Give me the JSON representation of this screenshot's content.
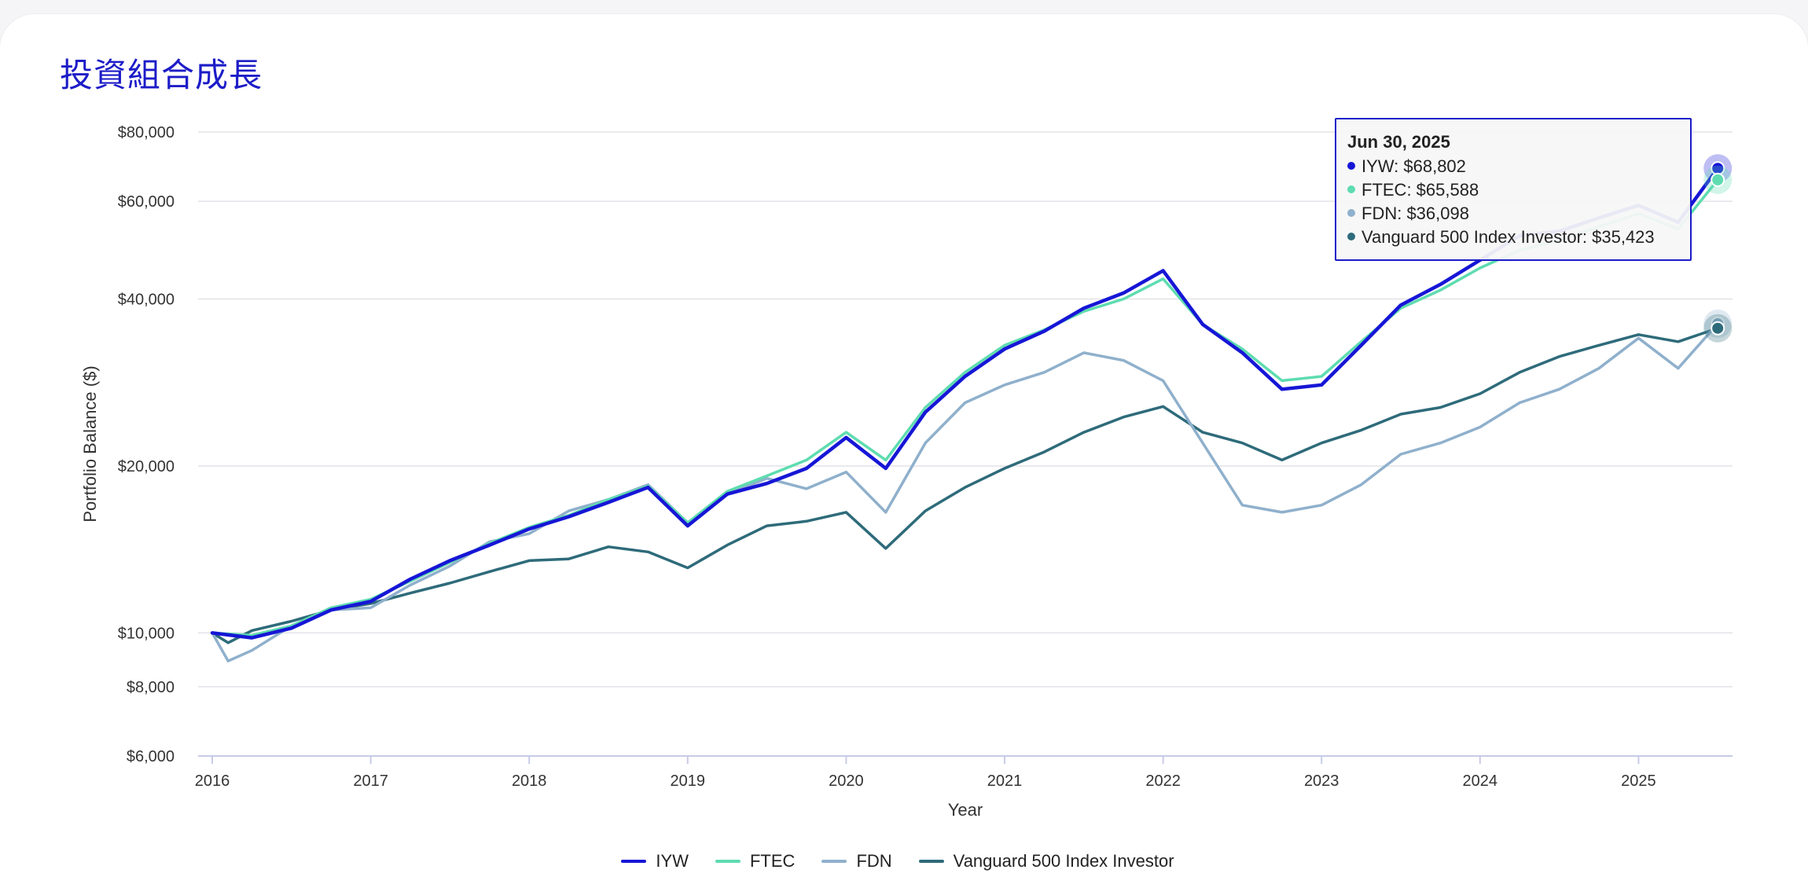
{
  "header": {
    "title": "投資組合成長"
  },
  "colors": {
    "IYW": "#1616d6",
    "FTEC": "#5edcb0",
    "FDN": "#8fb0cc",
    "VFINX": "#2e6b7a"
  },
  "tooltip": {
    "date": "Jun 30, 2025",
    "rows": [
      {
        "label": "IYW: $68,802",
        "color": "#1616d6"
      },
      {
        "label": "FTEC: $65,588",
        "color": "#5edcb0"
      },
      {
        "label": "FDN: $36,098",
        "color": "#8fb0cc"
      },
      {
        "label": "Vanguard 500 Index Investor: $35,423",
        "color": "#2e6b7a"
      }
    ]
  },
  "chart_data": {
    "type": "line",
    "title": "投資組合成長",
    "xlabel": "Year",
    "ylabel": "Portfolio Balance ($)",
    "yscale": "log",
    "ylim": [
      6000,
      80000
    ],
    "xlim": [
      2016,
      2025.6
    ],
    "x_ticks": [
      2016,
      2017,
      2018,
      2019,
      2020,
      2021,
      2022,
      2023,
      2024,
      2025
    ],
    "y_ticks": [
      6000,
      8000,
      10000,
      20000,
      40000,
      60000,
      80000
    ],
    "y_tick_labels": [
      "$6,000",
      "$8,000",
      "$10,000",
      "$20,000",
      "$40,000",
      "$60,000",
      "$80,000"
    ],
    "grid": true,
    "legend_position": "bottom-center",
    "series": [
      {
        "key": "IYW",
        "name": "IYW",
        "color": "#1616d6",
        "points": [
          [
            2016.0,
            10000
          ],
          [
            2016.25,
            9800
          ],
          [
            2016.5,
            10200
          ],
          [
            2016.75,
            11000
          ],
          [
            2017.0,
            11400
          ],
          [
            2017.25,
            12500
          ],
          [
            2017.5,
            13500
          ],
          [
            2017.75,
            14400
          ],
          [
            2018.0,
            15400
          ],
          [
            2018.25,
            16200
          ],
          [
            2018.5,
            17200
          ],
          [
            2018.75,
            18300
          ],
          [
            2019.0,
            15600
          ],
          [
            2019.25,
            17800
          ],
          [
            2019.5,
            18600
          ],
          [
            2019.75,
            19800
          ],
          [
            2020.0,
            22500
          ],
          [
            2020.25,
            19800
          ],
          [
            2020.5,
            25000
          ],
          [
            2020.75,
            29000
          ],
          [
            2021.0,
            32500
          ],
          [
            2021.25,
            35000
          ],
          [
            2021.5,
            38500
          ],
          [
            2021.75,
            41000
          ],
          [
            2022.0,
            45000
          ],
          [
            2022.25,
            36000
          ],
          [
            2022.5,
            32000
          ],
          [
            2022.75,
            27500
          ],
          [
            2023.0,
            28000
          ],
          [
            2023.25,
            33000
          ],
          [
            2023.5,
            39000
          ],
          [
            2023.75,
            42500
          ],
          [
            2024.0,
            47000
          ],
          [
            2024.25,
            52000
          ],
          [
            2024.5,
            53000
          ],
          [
            2024.75,
            56000
          ],
          [
            2025.0,
            59000
          ],
          [
            2025.25,
            55000
          ],
          [
            2025.5,
            68802
          ]
        ]
      },
      {
        "key": "FTEC",
        "name": "FTEC",
        "color": "#5edcb0",
        "points": [
          [
            2016.0,
            10000
          ],
          [
            2016.25,
            9900
          ],
          [
            2016.5,
            10300
          ],
          [
            2016.75,
            11100
          ],
          [
            2017.0,
            11500
          ],
          [
            2017.25,
            12400
          ],
          [
            2017.5,
            13400
          ],
          [
            2017.75,
            14500
          ],
          [
            2018.0,
            15500
          ],
          [
            2018.25,
            16300
          ],
          [
            2018.5,
            17400
          ],
          [
            2018.75,
            18400
          ],
          [
            2019.0,
            15800
          ],
          [
            2019.25,
            18000
          ],
          [
            2019.5,
            19200
          ],
          [
            2019.75,
            20500
          ],
          [
            2020.0,
            23000
          ],
          [
            2020.25,
            20500
          ],
          [
            2020.5,
            25500
          ],
          [
            2020.75,
            29500
          ],
          [
            2021.0,
            33000
          ],
          [
            2021.25,
            35200
          ],
          [
            2021.5,
            38000
          ],
          [
            2021.75,
            40000
          ],
          [
            2022.0,
            43500
          ],
          [
            2022.25,
            36000
          ],
          [
            2022.5,
            32500
          ],
          [
            2022.75,
            28500
          ],
          [
            2023.0,
            29000
          ],
          [
            2023.25,
            33500
          ],
          [
            2023.5,
            38500
          ],
          [
            2023.75,
            41500
          ],
          [
            2024.0,
            45500
          ],
          [
            2024.25,
            49000
          ],
          [
            2024.5,
            51000
          ],
          [
            2024.75,
            54000
          ],
          [
            2025.0,
            57000
          ],
          [
            2025.25,
            53500
          ],
          [
            2025.5,
            65588
          ]
        ]
      },
      {
        "key": "FDN",
        "name": "FDN",
        "color": "#8fb0cc",
        "points": [
          [
            2016.0,
            10000
          ],
          [
            2016.1,
            8900
          ],
          [
            2016.25,
            9300
          ],
          [
            2016.5,
            10300
          ],
          [
            2016.75,
            11000
          ],
          [
            2017.0,
            11100
          ],
          [
            2017.25,
            12200
          ],
          [
            2017.5,
            13200
          ],
          [
            2017.75,
            14600
          ],
          [
            2018.0,
            15100
          ],
          [
            2018.25,
            16600
          ],
          [
            2018.5,
            17400
          ],
          [
            2018.75,
            18500
          ],
          [
            2019.0,
            15800
          ],
          [
            2019.25,
            17800
          ],
          [
            2019.5,
            19000
          ],
          [
            2019.75,
            18200
          ],
          [
            2020.0,
            19500
          ],
          [
            2020.25,
            16500
          ],
          [
            2020.5,
            22000
          ],
          [
            2020.75,
            26000
          ],
          [
            2021.0,
            28000
          ],
          [
            2021.25,
            29500
          ],
          [
            2021.5,
            32000
          ],
          [
            2021.75,
            31000
          ],
          [
            2022.0,
            28500
          ],
          [
            2022.25,
            22000
          ],
          [
            2022.5,
            17000
          ],
          [
            2022.75,
            16500
          ],
          [
            2023.0,
            17000
          ],
          [
            2023.25,
            18500
          ],
          [
            2023.5,
            21000
          ],
          [
            2023.75,
            22000
          ],
          [
            2024.0,
            23500
          ],
          [
            2024.25,
            26000
          ],
          [
            2024.5,
            27500
          ],
          [
            2024.75,
            30000
          ],
          [
            2025.0,
            34000
          ],
          [
            2025.25,
            30000
          ],
          [
            2025.5,
            36098
          ]
        ]
      },
      {
        "key": "VFINX",
        "name": "Vanguard 500 Index Investor",
        "color": "#2e6b7a",
        "points": [
          [
            2016.0,
            10000
          ],
          [
            2016.1,
            9600
          ],
          [
            2016.25,
            10100
          ],
          [
            2016.5,
            10500
          ],
          [
            2016.75,
            11000
          ],
          [
            2017.0,
            11300
          ],
          [
            2017.25,
            11800
          ],
          [
            2017.5,
            12300
          ],
          [
            2017.75,
            12900
          ],
          [
            2018.0,
            13500
          ],
          [
            2018.25,
            13600
          ],
          [
            2018.5,
            14300
          ],
          [
            2018.75,
            14000
          ],
          [
            2019.0,
            13100
          ],
          [
            2019.25,
            14400
          ],
          [
            2019.5,
            15600
          ],
          [
            2019.75,
            15900
          ],
          [
            2020.0,
            16500
          ],
          [
            2020.25,
            14200
          ],
          [
            2020.5,
            16600
          ],
          [
            2020.75,
            18300
          ],
          [
            2021.0,
            19800
          ],
          [
            2021.25,
            21200
          ],
          [
            2021.5,
            23000
          ],
          [
            2021.75,
            24500
          ],
          [
            2022.0,
            25600
          ],
          [
            2022.25,
            23000
          ],
          [
            2022.5,
            22000
          ],
          [
            2022.75,
            20500
          ],
          [
            2023.0,
            22000
          ],
          [
            2023.25,
            23200
          ],
          [
            2023.5,
            24800
          ],
          [
            2023.75,
            25500
          ],
          [
            2024.0,
            27000
          ],
          [
            2024.25,
            29500
          ],
          [
            2024.5,
            31500
          ],
          [
            2024.75,
            33000
          ],
          [
            2025.0,
            34500
          ],
          [
            2025.25,
            33500
          ],
          [
            2025.5,
            35423
          ]
        ]
      }
    ]
  }
}
